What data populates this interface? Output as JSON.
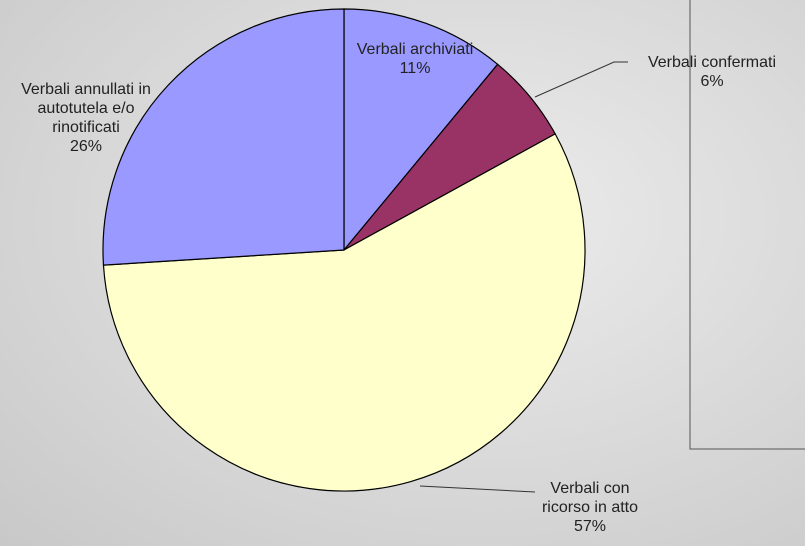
{
  "chart_data": {
    "type": "pie",
    "categories": [
      "Verbali archiviati",
      "Verbali confermati",
      "Verbali con ricorso in atto",
      "Verbali annullati in autotutela e/o rinotificati"
    ],
    "values": [
      11,
      6,
      57,
      26
    ],
    "value_labels": [
      "11%",
      "6%",
      "57%",
      "26%"
    ],
    "colors": [
      "#9999ff",
      "#993366",
      "#ffffcc",
      "#9999ff"
    ]
  }
}
